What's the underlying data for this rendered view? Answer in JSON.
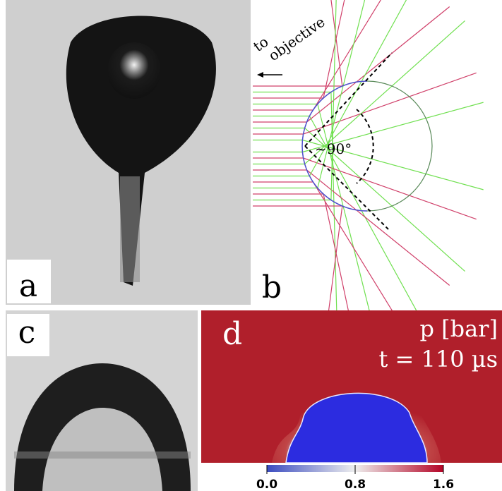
{
  "panels": {
    "a": {
      "label": "a"
    },
    "b": {
      "label": "b",
      "arrow_text_1": "to",
      "arrow_text_2": "objective",
      "angle_text": "~90°"
    },
    "c": {
      "label": "c"
    },
    "d": {
      "label": "d",
      "quantity": "p [bar]",
      "time": "t = 110 µs",
      "colorbar": {
        "range": [
          0,
          1.6
        ],
        "ticks": [
          {
            "value": 0,
            "label": "0.0"
          },
          {
            "value": 0.8,
            "label": "0.8"
          },
          {
            "value": 1.6,
            "label": "1.6"
          }
        ]
      }
    }
  }
}
